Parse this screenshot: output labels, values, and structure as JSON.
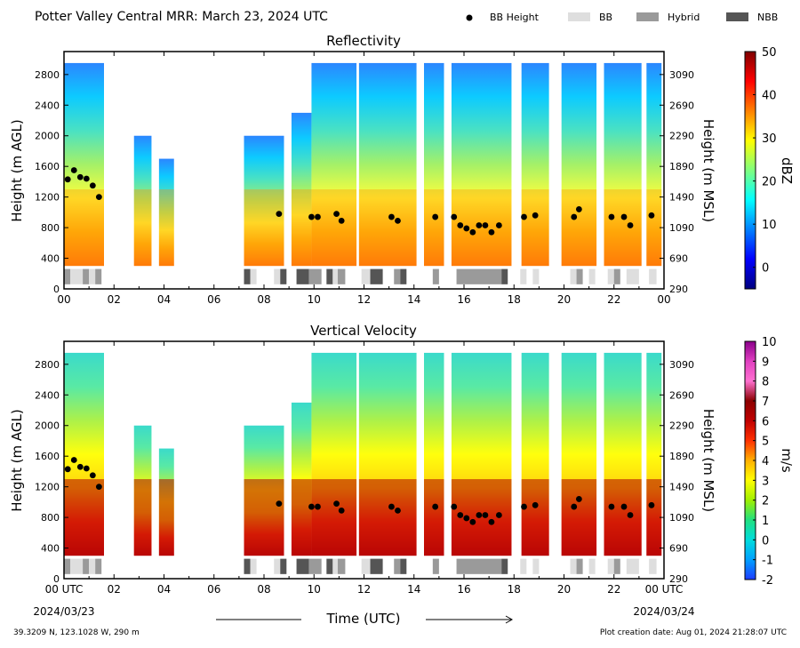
{
  "header": {
    "title": "Potter Valley Central MRR:  March 23, 2024 UTC",
    "legend": [
      {
        "name": "bb-height-legend",
        "label": "BB Height",
        "kind": "dot",
        "color": "#000000"
      },
      {
        "name": "bb-legend",
        "label": "BB",
        "kind": "swatch",
        "color": "#dedede"
      },
      {
        "name": "hybrid-legend",
        "label": "Hybrid",
        "kind": "swatch",
        "color": "#9a9a9a"
      },
      {
        "name": "nbb-legend",
        "label": "NBB",
        "kind": "swatch",
        "color": "#555555"
      }
    ]
  },
  "footer": {
    "location": "39.3209 N, 123.1028 W, 290 m",
    "creation": "Plot creation date: Aug 01, 2024 21:28:07 UTC",
    "xlabel": "Time (UTC)",
    "date_left": "2024/03/23",
    "date_right": "2024/03/24"
  },
  "chart_data": [
    {
      "type": "heatmap",
      "title": "Reflectivity",
      "xlabel": "",
      "ylabel": "Height (m AGL)",
      "ylabel_right": "Height (m MSL)",
      "x_ticks": [
        "00",
        "02",
        "04",
        "06",
        "08",
        "10",
        "12",
        "14",
        "16",
        "18",
        "20",
        "22",
        "00"
      ],
      "y_ticks": [
        "0",
        "400",
        "800",
        "1200",
        "1600",
        "2000",
        "2400",
        "2800"
      ],
      "y_ticks_right": [
        "290",
        "690",
        "1090",
        "1490",
        "1890",
        "2290",
        "2690",
        "3090"
      ],
      "xlim": [
        0,
        24
      ],
      "ylim": [
        0,
        3100
      ],
      "colorbar": {
        "label": "dBZ",
        "range": [
          -5,
          50
        ],
        "ticks": [
          "0",
          "10",
          "20",
          "30",
          "40",
          "50"
        ],
        "colors": [
          "#00007f",
          "#0000ff",
          "#0080ff",
          "#00ffff",
          "#7fff7f",
          "#ffff00",
          "#ff8000",
          "#ff0000",
          "#7f0000"
        ]
      }
    },
    {
      "type": "heatmap",
      "title": "Vertical Velocity",
      "xlabel": "Time (UTC)",
      "ylabel": "Height (m AGL)",
      "ylabel_right": "Height (m MSL)",
      "x_ticks": [
        "00 UTC",
        "02",
        "04",
        "06",
        "08",
        "10",
        "12",
        "14",
        "16",
        "18",
        "20",
        "22",
        "00 UTC"
      ],
      "y_ticks": [
        "0",
        "400",
        "800",
        "1200",
        "1600",
        "2000",
        "2400",
        "2800"
      ],
      "y_ticks_right": [
        "290",
        "690",
        "1090",
        "1490",
        "1890",
        "2290",
        "2690",
        "3090"
      ],
      "xlim": [
        0,
        24
      ],
      "ylim": [
        0,
        3100
      ],
      "colorbar": {
        "label": "m/s",
        "range": [
          -2,
          10
        ],
        "ticks": [
          "-2",
          "-1",
          "0",
          "1",
          "2",
          "3",
          "4",
          "5",
          "6",
          "7",
          "8",
          "9",
          "10"
        ],
        "colors": [
          "#1e3cff",
          "#00a0ff",
          "#00dcdc",
          "#20e080",
          "#a0f000",
          "#ffff00",
          "#ffb000",
          "#ff3000",
          "#c00000",
          "#8b0000",
          "#ff70d0",
          "#e040c0",
          "#8b008b"
        ]
      }
    }
  ],
  "bb_height": {
    "x": [
      0.15,
      0.4,
      0.65,
      0.9,
      1.15,
      1.4,
      8.6,
      9.9,
      10.15,
      10.9,
      11.1,
      13.1,
      13.35,
      14.85,
      15.6,
      15.85,
      16.1,
      16.35,
      16.6,
      16.85,
      17.1,
      17.4,
      18.4,
      18.85,
      20.4,
      20.6,
      21.9,
      22.4,
      22.65,
      23.5
    ],
    "y": [
      1430,
      1550,
      1460,
      1440,
      1350,
      1200,
      980,
      940,
      940,
      980,
      890,
      940,
      890,
      940,
      940,
      830,
      790,
      740,
      830,
      830,
      740,
      830,
      940,
      960,
      940,
      1040,
      940,
      940,
      830,
      960
    ]
  },
  "bb_type_bar": [
    {
      "start": 0.0,
      "end": 0.25,
      "type": "Hybrid"
    },
    {
      "start": 0.25,
      "end": 0.75,
      "type": "BB"
    },
    {
      "start": 0.75,
      "end": 1.0,
      "type": "Hybrid"
    },
    {
      "start": 1.0,
      "end": 1.25,
      "type": "BB"
    },
    {
      "start": 1.25,
      "end": 1.5,
      "type": "Hybrid"
    },
    {
      "start": 7.2,
      "end": 7.45,
      "type": "NBB"
    },
    {
      "start": 7.45,
      "end": 7.7,
      "type": "BB"
    },
    {
      "start": 8.4,
      "end": 8.65,
      "type": "BB"
    },
    {
      "start": 8.65,
      "end": 8.9,
      "type": "NBB"
    },
    {
      "start": 9.3,
      "end": 9.8,
      "type": "NBB"
    },
    {
      "start": 9.8,
      "end": 10.3,
      "type": "Hybrid"
    },
    {
      "start": 10.5,
      "end": 10.75,
      "type": "NBB"
    },
    {
      "start": 10.75,
      "end": 10.95,
      "type": "BB"
    },
    {
      "start": 10.95,
      "end": 11.25,
      "type": "Hybrid"
    },
    {
      "start": 11.9,
      "end": 12.25,
      "type": "BB"
    },
    {
      "start": 12.25,
      "end": 12.75,
      "type": "NBB"
    },
    {
      "start": 13.2,
      "end": 13.45,
      "type": "Hybrid"
    },
    {
      "start": 13.45,
      "end": 13.7,
      "type": "NBB"
    },
    {
      "start": 14.75,
      "end": 15.0,
      "type": "Hybrid"
    },
    {
      "start": 15.7,
      "end": 17.5,
      "type": "Hybrid"
    },
    {
      "start": 17.5,
      "end": 17.75,
      "type": "NBB"
    },
    {
      "start": 18.25,
      "end": 18.5,
      "type": "BB"
    },
    {
      "start": 18.75,
      "end": 19.0,
      "type": "BB"
    },
    {
      "start": 20.25,
      "end": 20.5,
      "type": "BB"
    },
    {
      "start": 20.5,
      "end": 20.75,
      "type": "Hybrid"
    },
    {
      "start": 21.0,
      "end": 21.25,
      "type": "BB"
    },
    {
      "start": 21.75,
      "end": 22.0,
      "type": "BB"
    },
    {
      "start": 22.0,
      "end": 22.25,
      "type": "Hybrid"
    },
    {
      "start": 22.5,
      "end": 23.0,
      "type": "BB"
    },
    {
      "start": 23.4,
      "end": 23.7,
      "type": "BB"
    }
  ],
  "echo_columns": [
    {
      "start": 0.0,
      "end": 1.6,
      "top": 2950
    },
    {
      "start": 2.8,
      "end": 3.5,
      "top": 2000
    },
    {
      "start": 3.8,
      "end": 4.4,
      "top": 1700
    },
    {
      "start": 7.2,
      "end": 8.8,
      "top": 2000
    },
    {
      "start": 9.1,
      "end": 9.9,
      "top": 2300
    },
    {
      "start": 9.9,
      "end": 11.7,
      "top": 2950
    },
    {
      "start": 11.8,
      "end": 14.1,
      "top": 2950
    },
    {
      "start": 14.4,
      "end": 15.2,
      "top": 2950
    },
    {
      "start": 15.5,
      "end": 17.9,
      "top": 2950
    },
    {
      "start": 18.3,
      "end": 19.4,
      "top": 2950
    },
    {
      "start": 19.9,
      "end": 21.3,
      "top": 2950
    },
    {
      "start": 21.6,
      "end": 23.1,
      "top": 2950
    },
    {
      "start": 23.3,
      "end": 23.9,
      "top": 2950
    }
  ]
}
